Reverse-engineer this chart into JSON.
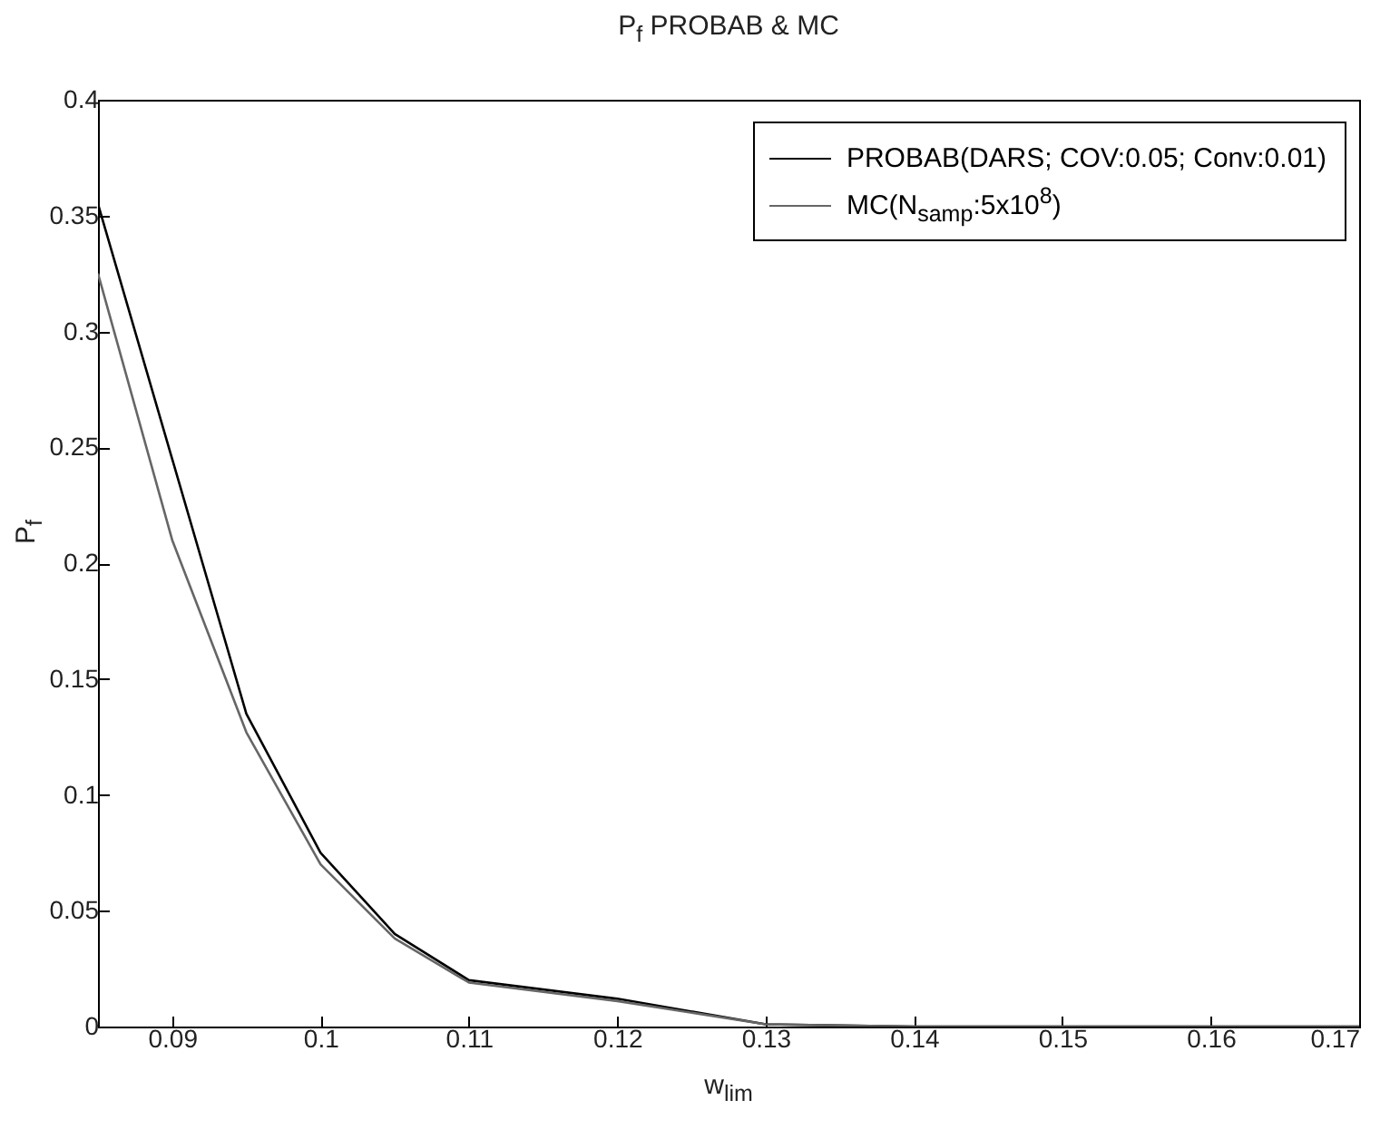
{
  "chart_data": {
    "type": "line",
    "title": "P$_{f}$ PROBAB & MC",
    "xlabel": "w$_{lim}$",
    "ylabel": "P$_{f}$",
    "x": [
      0.085,
      0.09,
      0.095,
      0.1,
      0.105,
      0.11,
      0.12,
      0.13,
      0.14,
      0.15,
      0.16,
      0.17
    ],
    "series": [
      {
        "name": "PROBAB(DARS; COV:0.05; Conv:0.01)",
        "color": "#000000",
        "values": [
          0.355,
          0.245,
          0.135,
          0.075,
          0.04,
          0.02,
          0.012,
          0.001,
          0,
          0,
          0,
          0
        ]
      },
      {
        "name": "MC(N$_{samp}$:5x10$^{8}$)",
        "color": "#666666",
        "values": [
          0.325,
          0.21,
          0.127,
          0.07,
          0.038,
          0.019,
          0.011,
          0.001,
          0,
          0,
          0,
          0
        ]
      }
    ],
    "xlim": [
      0.085,
      0.17
    ],
    "xticks": [
      0.09,
      0.1,
      0.11,
      0.12,
      0.13,
      0.14,
      0.15,
      0.16,
      0.17
    ],
    "ylim": [
      0,
      0.4
    ],
    "yticks": [
      0,
      0.05,
      0.1,
      0.15,
      0.2,
      0.25,
      0.3,
      0.35,
      0.4
    ],
    "grid": false,
    "legend": "top right",
    "marker": "none",
    "line_style": "solid"
  }
}
